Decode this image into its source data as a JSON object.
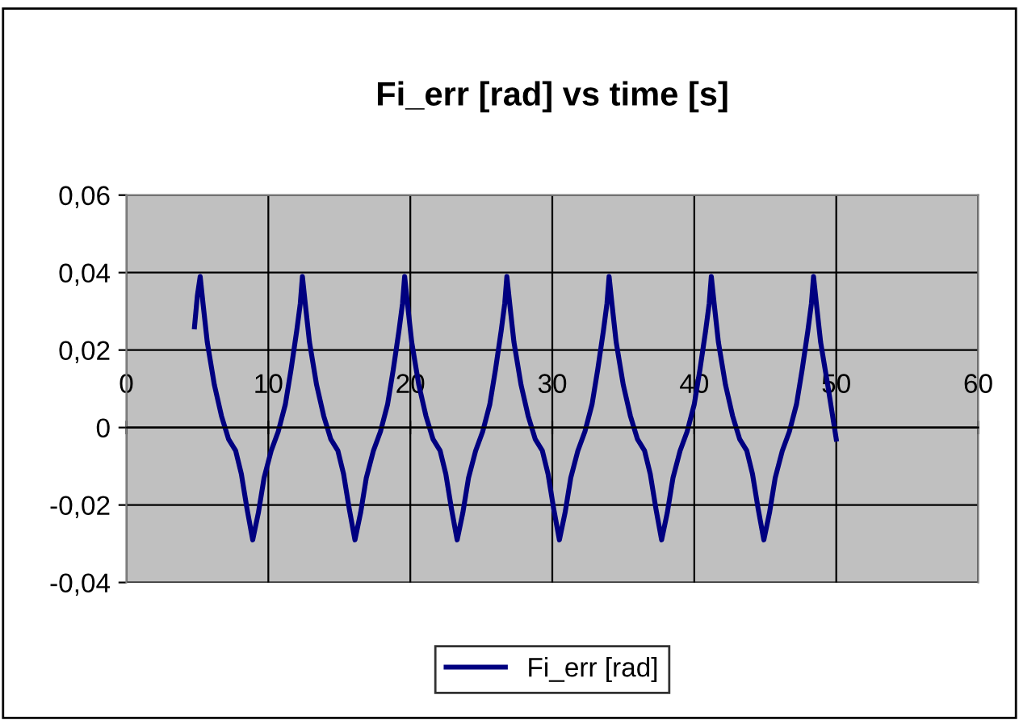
{
  "chart_data": {
    "type": "line",
    "title": "Fi_err [rad] vs time [s]",
    "xlim": [
      0,
      60
    ],
    "xticks": [
      0,
      10,
      20,
      30,
      40,
      50,
      60
    ],
    "ylim": [
      -0.04,
      0.06
    ],
    "yticks": [
      {
        "value": -0.04,
        "label": "-0,04"
      },
      {
        "value": -0.02,
        "label": "-0,02"
      },
      {
        "value": 0,
        "label": "0"
      },
      {
        "value": 0.02,
        "label": "0,02"
      },
      {
        "value": 0.04,
        "label": "0,04"
      },
      {
        "value": 0.06,
        "label": "0,06"
      }
    ],
    "grid": true,
    "legend": "bottom",
    "marker": "none",
    "line_style": "solid",
    "series": [
      {
        "name": "Fi_err [rad]",
        "color": "#000080",
        "x": [
          4.8,
          5.0,
          5.2,
          5.4,
          5.7,
          6.2,
          6.7,
          7.2,
          7.7,
          8.1,
          8.5,
          8.9,
          9.3,
          9.7,
          10.2,
          10.7,
          11.2,
          11.6,
          12.0,
          12.25,
          12.4,
          12.6,
          12.9,
          13.4,
          13.9,
          14.4,
          14.9,
          15.3,
          15.7,
          16.1,
          16.5,
          16.9,
          17.4,
          17.9,
          18.4,
          18.8,
          19.2,
          19.45,
          19.6,
          19.8,
          20.1,
          20.6,
          21.1,
          21.6,
          22.1,
          22.5,
          22.9,
          23.3,
          23.7,
          24.1,
          24.6,
          25.1,
          25.6,
          26.0,
          26.4,
          26.65,
          26.8,
          27.0,
          27.3,
          27.8,
          28.3,
          28.8,
          29.3,
          29.7,
          30.1,
          30.5,
          30.9,
          31.3,
          31.8,
          32.3,
          32.8,
          33.2,
          33.6,
          33.85,
          34.0,
          34.2,
          34.5,
          35.0,
          35.5,
          36.0,
          36.5,
          36.9,
          37.3,
          37.7,
          38.1,
          38.5,
          39.0,
          39.5,
          40.0,
          40.4,
          40.8,
          41.05,
          41.2,
          41.4,
          41.7,
          42.2,
          42.7,
          43.2,
          43.7,
          44.1,
          44.5,
          44.9,
          45.3,
          45.7,
          46.2,
          46.7,
          47.2,
          47.6,
          48.0,
          48.25,
          48.4,
          48.6,
          48.9,
          49.4,
          50.0
        ],
        "values": [
          0.026,
          0.034,
          0.039,
          0.032,
          0.022,
          0.011,
          0.003,
          -0.003,
          -0.006,
          -0.012,
          -0.021,
          -0.029,
          -0.022,
          -0.013,
          -0.006,
          -0.001,
          0.006,
          0.015,
          0.025,
          0.032,
          0.039,
          0.032,
          0.022,
          0.011,
          0.003,
          -0.003,
          -0.006,
          -0.012,
          -0.021,
          -0.029,
          -0.022,
          -0.013,
          -0.006,
          -0.001,
          0.006,
          0.015,
          0.025,
          0.032,
          0.039,
          0.032,
          0.022,
          0.011,
          0.003,
          -0.003,
          -0.006,
          -0.012,
          -0.021,
          -0.029,
          -0.022,
          -0.013,
          -0.006,
          -0.001,
          0.006,
          0.015,
          0.025,
          0.032,
          0.039,
          0.032,
          0.022,
          0.011,
          0.003,
          -0.003,
          -0.006,
          -0.012,
          -0.021,
          -0.029,
          -0.022,
          -0.013,
          -0.006,
          -0.001,
          0.006,
          0.015,
          0.025,
          0.032,
          0.039,
          0.032,
          0.022,
          0.011,
          0.003,
          -0.003,
          -0.006,
          -0.012,
          -0.021,
          -0.029,
          -0.022,
          -0.013,
          -0.006,
          -0.001,
          0.006,
          0.015,
          0.025,
          0.032,
          0.039,
          0.032,
          0.022,
          0.011,
          0.003,
          -0.003,
          -0.006,
          -0.012,
          -0.021,
          -0.029,
          -0.022,
          -0.013,
          -0.006,
          -0.001,
          0.006,
          0.015,
          0.025,
          0.032,
          0.039,
          0.032,
          0.022,
          0.011,
          -0.003
        ]
      }
    ]
  }
}
